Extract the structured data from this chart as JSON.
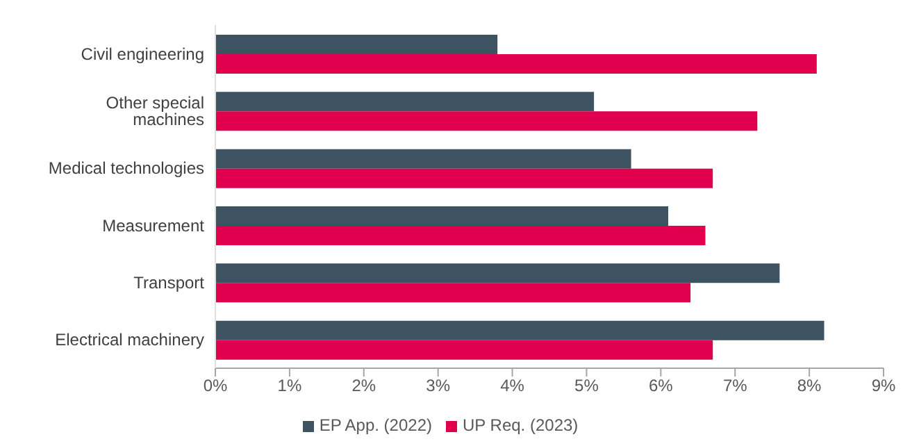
{
  "chart_data": {
    "type": "bar",
    "orientation": "horizontal",
    "categories": [
      "Civil engineering",
      "Other special machines",
      "Medical technologies",
      "Measurement",
      "Transport",
      "Electrical machinery"
    ],
    "series": [
      {
        "name": "EP App. (2022)",
        "color": "#3d5361",
        "values": [
          3.8,
          5.1,
          5.6,
          6.1,
          7.6,
          8.2
        ]
      },
      {
        "name": "UP Req. (2023)",
        "color": "#e0004d",
        "values": [
          8.1,
          7.3,
          6.7,
          6.6,
          6.4,
          6.7
        ]
      }
    ],
    "xlim": [
      0,
      9
    ],
    "xticks": [
      {
        "value": 0,
        "label": "0%"
      },
      {
        "value": 1,
        "label": "1%"
      },
      {
        "value": 2,
        "label": "2%"
      },
      {
        "value": 3,
        "label": "3%"
      },
      {
        "value": 4,
        "label": "4%"
      },
      {
        "value": 5,
        "label": "5%"
      },
      {
        "value": 6,
        "label": "6%"
      },
      {
        "value": 7,
        "label": "7%"
      },
      {
        "value": 8,
        "label": "8%"
      },
      {
        "value": 9,
        "label": "9%"
      }
    ],
    "grid": false,
    "legend": "bottom"
  }
}
